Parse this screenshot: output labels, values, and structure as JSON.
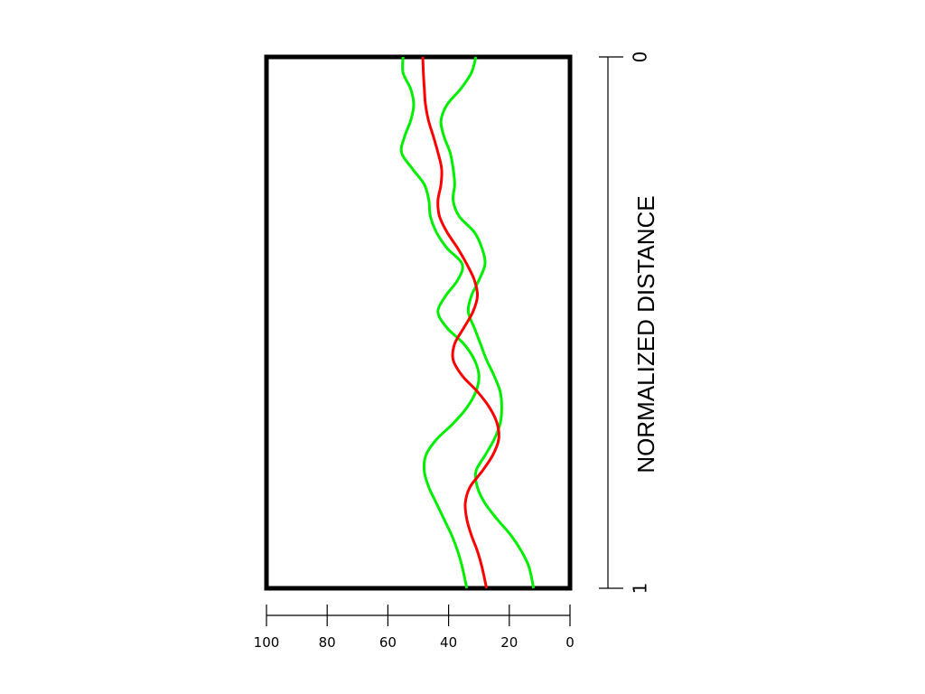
{
  "chart_data": {
    "type": "line",
    "title": "",
    "orientation": "vertical-profile",
    "x_axis": {
      "range": [
        100,
        0
      ],
      "ticks": [
        100,
        80,
        60,
        40,
        20,
        0
      ],
      "tick_labels": [
        "100",
        "80",
        "60",
        "40",
        "20",
        "0"
      ],
      "label": ""
    },
    "y_axis": {
      "label": "NORMALIZED DISTANCE",
      "range": [
        0,
        1
      ],
      "tick_labels": [
        "0",
        "1"
      ]
    },
    "grid": false,
    "legend": "none",
    "series": [
      {
        "color": "#ff0000",
        "points": [
          [
            48.5,
            0.0
          ],
          [
            48.3,
            0.03
          ],
          [
            48.0,
            0.06
          ],
          [
            47.6,
            0.09
          ],
          [
            46.6,
            0.12
          ],
          [
            45.0,
            0.15
          ],
          [
            43.5,
            0.18
          ],
          [
            42.3,
            0.21
          ],
          [
            42.5,
            0.24
          ],
          [
            43.5,
            0.27
          ],
          [
            43.0,
            0.3
          ],
          [
            40.5,
            0.33
          ],
          [
            37.0,
            0.36
          ],
          [
            34.0,
            0.39
          ],
          [
            31.5,
            0.42
          ],
          [
            30.5,
            0.45
          ],
          [
            32.0,
            0.48
          ],
          [
            35.0,
            0.51
          ],
          [
            38.0,
            0.54
          ],
          [
            38.5,
            0.57
          ],
          [
            35.5,
            0.6
          ],
          [
            30.5,
            0.63
          ],
          [
            26.5,
            0.66
          ],
          [
            24.0,
            0.69
          ],
          [
            23.5,
            0.72
          ],
          [
            25.5,
            0.75
          ],
          [
            29.0,
            0.78
          ],
          [
            33.0,
            0.81
          ],
          [
            34.5,
            0.84
          ],
          [
            34.0,
            0.87
          ],
          [
            32.5,
            0.9
          ],
          [
            30.5,
            0.93
          ],
          [
            29.0,
            0.96
          ],
          [
            27.5,
            1.0
          ]
        ]
      },
      {
        "color": "#00ee00",
        "points": [
          [
            55.0,
            0.0
          ],
          [
            55.0,
            0.03
          ],
          [
            52.5,
            0.06
          ],
          [
            51.5,
            0.09
          ],
          [
            52.5,
            0.12
          ],
          [
            54.5,
            0.15
          ],
          [
            55.5,
            0.18
          ],
          [
            52.0,
            0.21
          ],
          [
            48.0,
            0.24
          ],
          [
            46.5,
            0.27
          ],
          [
            46.0,
            0.3
          ],
          [
            44.0,
            0.33
          ],
          [
            40.5,
            0.36
          ],
          [
            35.5,
            0.39
          ],
          [
            37.0,
            0.42
          ],
          [
            41.0,
            0.45
          ],
          [
            43.5,
            0.48
          ],
          [
            40.5,
            0.51
          ],
          [
            35.0,
            0.54
          ],
          [
            31.5,
            0.57
          ],
          [
            30.0,
            0.6
          ],
          [
            31.0,
            0.63
          ],
          [
            34.0,
            0.66
          ],
          [
            38.5,
            0.69
          ],
          [
            44.0,
            0.72
          ],
          [
            47.5,
            0.75
          ],
          [
            48.0,
            0.78
          ],
          [
            46.5,
            0.81
          ],
          [
            44.0,
            0.84
          ],
          [
            41.5,
            0.87
          ],
          [
            39.0,
            0.9
          ],
          [
            37.0,
            0.93
          ],
          [
            35.5,
            0.96
          ],
          [
            34.0,
            1.0
          ]
        ]
      },
      {
        "color": "#00ee00",
        "points": [
          [
            31.0,
            0.0
          ],
          [
            32.5,
            0.03
          ],
          [
            36.0,
            0.06
          ],
          [
            40.5,
            0.09
          ],
          [
            42.5,
            0.12
          ],
          [
            41.5,
            0.15
          ],
          [
            39.5,
            0.18
          ],
          [
            38.5,
            0.21
          ],
          [
            38.0,
            0.24
          ],
          [
            38.5,
            0.27
          ],
          [
            36.5,
            0.3
          ],
          [
            31.5,
            0.33
          ],
          [
            29.0,
            0.36
          ],
          [
            28.0,
            0.39
          ],
          [
            30.0,
            0.42
          ],
          [
            32.5,
            0.45
          ],
          [
            33.5,
            0.48
          ],
          [
            31.5,
            0.51
          ],
          [
            29.5,
            0.54
          ],
          [
            27.5,
            0.57
          ],
          [
            25.0,
            0.6
          ],
          [
            23.0,
            0.63
          ],
          [
            22.5,
            0.66
          ],
          [
            23.0,
            0.69
          ],
          [
            25.0,
            0.72
          ],
          [
            28.0,
            0.75
          ],
          [
            31.0,
            0.78
          ],
          [
            30.5,
            0.81
          ],
          [
            28.0,
            0.84
          ],
          [
            24.0,
            0.87
          ],
          [
            19.5,
            0.9
          ],
          [
            16.0,
            0.93
          ],
          [
            13.5,
            0.96
          ],
          [
            12.0,
            1.0
          ]
        ]
      }
    ],
    "colors": {
      "frame": "#000000",
      "background": "#ffffff"
    }
  }
}
